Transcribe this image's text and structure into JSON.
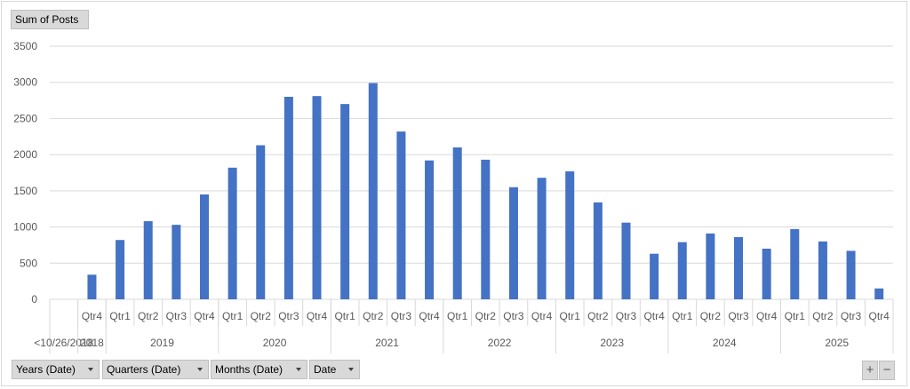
{
  "value_field_button": "Sum of Posts",
  "axis_field_buttons": [
    {
      "label": "Years (Date)"
    },
    {
      "label": "Quarters (Date)"
    },
    {
      "label": "Months (Date)"
    },
    {
      "label": "Date"
    }
  ],
  "zoom_buttons": {
    "expand": "+",
    "collapse": "−"
  },
  "colors": {
    "bar": "#4472c4",
    "grid": "#d9d9d9",
    "text": "#595959"
  },
  "chart_data": {
    "type": "bar",
    "title": "",
    "xlabel": "",
    "ylabel": "",
    "ylim": [
      0,
      3500
    ],
    "yticks": [
      0,
      500,
      1000,
      1500,
      2000,
      2500,
      3000,
      3500
    ],
    "grid": true,
    "legend": "none",
    "categories": [
      {
        "year": "<10/26/2018",
        "quarter": ""
      },
      {
        "year": "2018",
        "quarter": "Qtr4"
      },
      {
        "year": "2019",
        "quarter": "Qtr1"
      },
      {
        "year": "2019",
        "quarter": "Qtr2"
      },
      {
        "year": "2019",
        "quarter": "Qtr3"
      },
      {
        "year": "2019",
        "quarter": "Qtr4"
      },
      {
        "year": "2020",
        "quarter": "Qtr1"
      },
      {
        "year": "2020",
        "quarter": "Qtr2"
      },
      {
        "year": "2020",
        "quarter": "Qtr3"
      },
      {
        "year": "2020",
        "quarter": "Qtr4"
      },
      {
        "year": "2021",
        "quarter": "Qtr1"
      },
      {
        "year": "2021",
        "quarter": "Qtr2"
      },
      {
        "year": "2021",
        "quarter": "Qtr3"
      },
      {
        "year": "2021",
        "quarter": "Qtr4"
      },
      {
        "year": "2022",
        "quarter": "Qtr1"
      },
      {
        "year": "2022",
        "quarter": "Qtr2"
      },
      {
        "year": "2022",
        "quarter": "Qtr3"
      },
      {
        "year": "2022",
        "quarter": "Qtr4"
      },
      {
        "year": "2023",
        "quarter": "Qtr1"
      },
      {
        "year": "2023",
        "quarter": "Qtr2"
      },
      {
        "year": "2023",
        "quarter": "Qtr3"
      },
      {
        "year": "2023",
        "quarter": "Qtr4"
      },
      {
        "year": "2024",
        "quarter": "Qtr1"
      },
      {
        "year": "2024",
        "quarter": "Qtr2"
      },
      {
        "year": "2024",
        "quarter": "Qtr3"
      },
      {
        "year": "2024",
        "quarter": "Qtr4"
      },
      {
        "year": "2025",
        "quarter": "Qtr1"
      },
      {
        "year": "2025",
        "quarter": "Qtr2"
      },
      {
        "year": "2025",
        "quarter": "Qtr3"
      },
      {
        "year": "2025",
        "quarter": "Qtr4"
      }
    ],
    "years": [
      "<10/26/2018",
      "2018",
      "2019",
      "2020",
      "2021",
      "2022",
      "2023",
      "2024",
      "2025"
    ],
    "series": [
      {
        "values": [
          0,
          340,
          820,
          1080,
          1030,
          1450,
          1820,
          2130,
          2800,
          2810,
          2700,
          2990,
          2320,
          1920,
          2100,
          1930,
          1550,
          1680,
          1770,
          1340,
          1060,
          630,
          790,
          910,
          860,
          700,
          970,
          800,
          670,
          150
        ]
      }
    ]
  }
}
